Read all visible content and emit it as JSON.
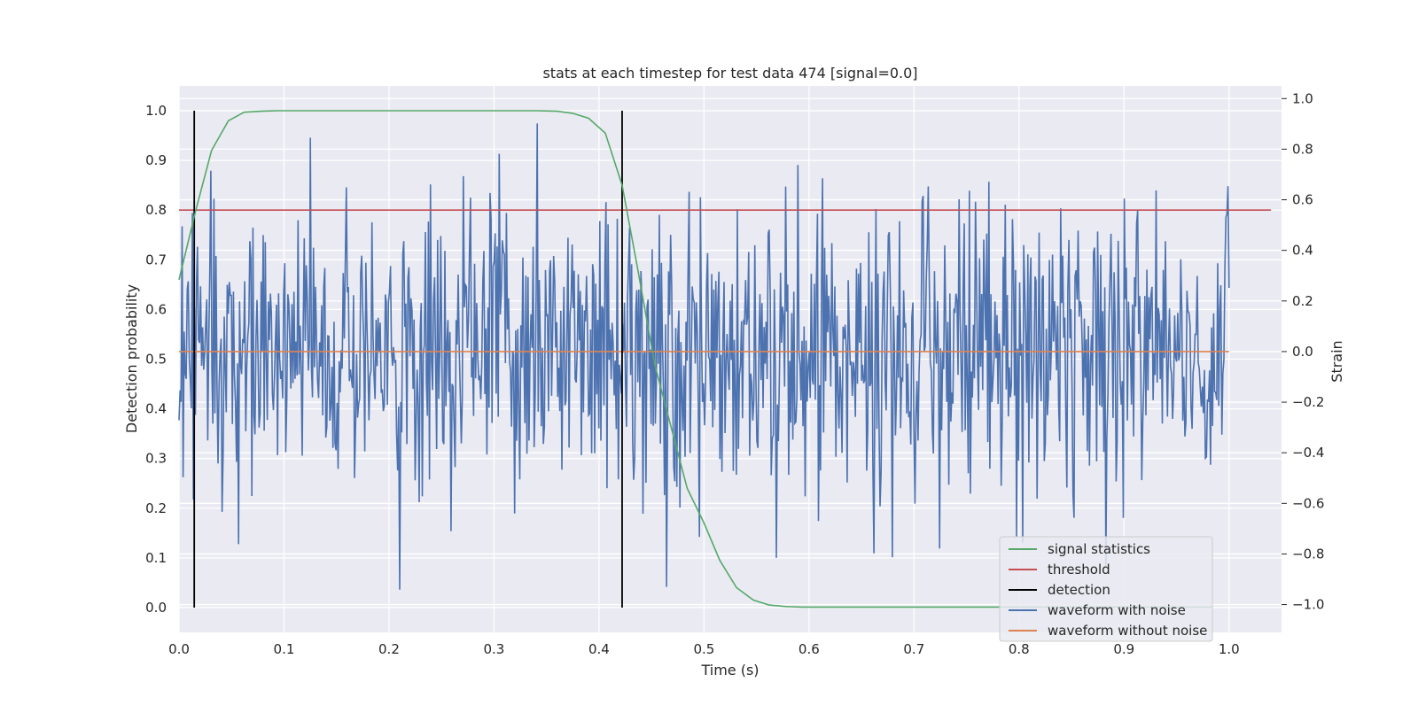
{
  "chart_data": {
    "type": "line",
    "title": "stats at each timestep for test data 474 [signal=0.0]",
    "xlabel": "Time (s)",
    "ylabel_left": "Detection probability",
    "ylabel_right": "Strain",
    "xlim": [
      0.0,
      1.05
    ],
    "ylim_left": [
      -0.05,
      1.05
    ],
    "ylim_right": [
      -1.11,
      1.05
    ],
    "x_ticks": [
      "0.0",
      "0.1",
      "0.2",
      "0.3",
      "0.4",
      "0.5",
      "0.6",
      "0.7",
      "0.8",
      "0.9",
      "1.0"
    ],
    "y_left_ticks": [
      "0.0",
      "0.1",
      "0.2",
      "0.3",
      "0.4",
      "0.5",
      "0.6",
      "0.7",
      "0.8",
      "0.9",
      "1.0"
    ],
    "y_right_ticks": [
      "−1.0",
      "−0.8",
      "−0.6",
      "−0.4",
      "−0.2",
      "0.0",
      "0.2",
      "0.4",
      "0.6",
      "0.8",
      "1.0"
    ],
    "grid": true,
    "legend_position": "lower-right",
    "legend": [
      {
        "label": "signal statistics",
        "color": "#55a868"
      },
      {
        "label": "threshold",
        "color": "#c44e52"
      },
      {
        "label": "detection",
        "color": "#000000"
      },
      {
        "label": "waveform with noise",
        "color": "#4c72b0"
      },
      {
        "label": "waveform without noise",
        "color": "#dd8452"
      }
    ],
    "signal_statistics": {
      "axis": "left",
      "color": "#55a868",
      "x": [
        0.0,
        0.016,
        0.031,
        0.047,
        0.062,
        0.078,
        0.094,
        0.109,
        0.125,
        0.14,
        0.2,
        0.25,
        0.3,
        0.34,
        0.36,
        0.375,
        0.39,
        0.406,
        0.422,
        0.437,
        0.453,
        0.469,
        0.484,
        0.5,
        0.515,
        0.531,
        0.547,
        0.562,
        0.578,
        0.594,
        0.7,
        0.8,
        0.9,
        0.984
      ],
      "y": [
        0.66,
        0.8,
        0.92,
        0.98,
        0.997,
        0.999,
        1.0,
        1.0,
        1.0,
        1.0,
        1.0,
        1.0,
        1.0,
        1.0,
        0.999,
        0.995,
        0.985,
        0.955,
        0.85,
        0.68,
        0.49,
        0.36,
        0.24,
        0.17,
        0.095,
        0.04,
        0.015,
        0.005,
        0.002,
        0.001,
        0.001,
        0.001,
        0.001,
        0.001
      ]
    },
    "threshold": {
      "axis": "left",
      "value": 0.8,
      "x_range": [
        0.0,
        1.04
      ],
      "color": "#c44e52"
    },
    "detections": {
      "axis": "left",
      "x": [
        0.0145,
        0.422
      ],
      "y_range": [
        0.0,
        1.0
      ],
      "color": "#000000"
    },
    "waveform_without_noise": {
      "axis": "right",
      "value": 0.0,
      "x_range": [
        0.0,
        1.0
      ],
      "color": "#dd8452"
    },
    "waveform_with_noise": {
      "axis": "right",
      "color": "#4c72b0",
      "x_range": [
        0.0,
        1.0
      ],
      "num_samples": 1024,
      "std": 0.3,
      "y_range": [
        -1.0,
        1.0
      ]
    }
  }
}
